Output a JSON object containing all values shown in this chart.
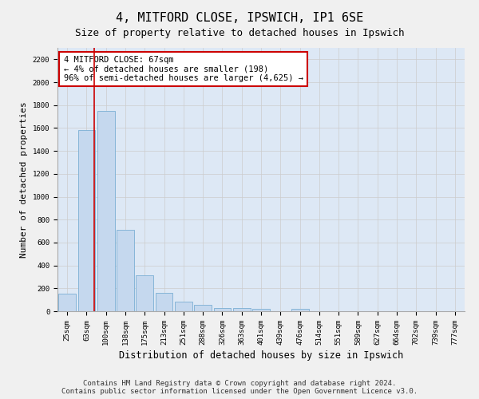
{
  "title": "4, MITFORD CLOSE, IPSWICH, IP1 6SE",
  "subtitle": "Size of property relative to detached houses in Ipswich",
  "xlabel": "Distribution of detached houses by size in Ipswich",
  "ylabel": "Number of detached properties",
  "categories": [
    "25sqm",
    "63sqm",
    "100sqm",
    "138sqm",
    "175sqm",
    "213sqm",
    "251sqm",
    "288sqm",
    "326sqm",
    "363sqm",
    "401sqm",
    "439sqm",
    "476sqm",
    "514sqm",
    "551sqm",
    "589sqm",
    "627sqm",
    "664sqm",
    "702sqm",
    "739sqm",
    "777sqm"
  ],
  "values": [
    155,
    1580,
    1750,
    710,
    315,
    160,
    85,
    55,
    30,
    25,
    20,
    0,
    20,
    0,
    0,
    0,
    0,
    0,
    0,
    0,
    0
  ],
  "bar_color": "#c5d8ee",
  "bar_edge_color": "#7aafd4",
  "red_line_x": 1.38,
  "annotation_title": "4 MITFORD CLOSE: 67sqm",
  "annotation_line1": "← 4% of detached houses are smaller (198)",
  "annotation_line2": "96% of semi-detached houses are larger (4,625) →",
  "annotation_box_facecolor": "#ffffff",
  "annotation_box_edgecolor": "#cc0000",
  "red_line_color": "#cc0000",
  "grid_color": "#cccccc",
  "plot_bg_color": "#dde8f5",
  "fig_bg_color": "#f0f0f0",
  "ylim": [
    0,
    2300
  ],
  "yticks": [
    0,
    200,
    400,
    600,
    800,
    1000,
    1200,
    1400,
    1600,
    1800,
    2000,
    2200
  ],
  "footer1": "Contains HM Land Registry data © Crown copyright and database right 2024.",
  "footer2": "Contains public sector information licensed under the Open Government Licence v3.0.",
  "title_fontsize": 11,
  "subtitle_fontsize": 9,
  "xlabel_fontsize": 8.5,
  "ylabel_fontsize": 8,
  "tick_fontsize": 6.5,
  "annot_fontsize": 7.5,
  "footer_fontsize": 6.5
}
